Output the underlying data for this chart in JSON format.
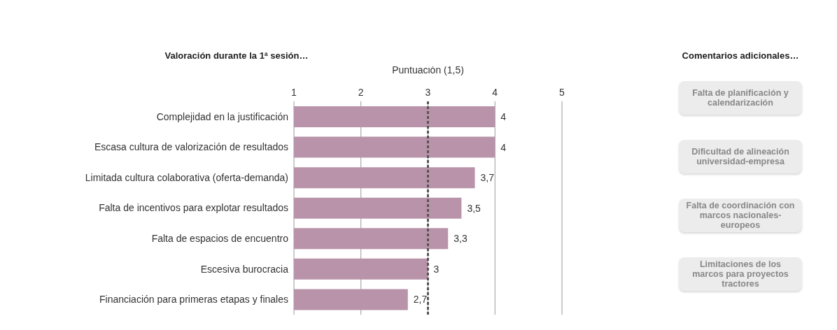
{
  "chart_data": [
    {
      "type": "bar",
      "orientation": "horizontal",
      "title": "Valoración durante la 1ª sesión…",
      "xlabel": "Puntuación (1,5)",
      "categories": [
        "Complejidad en la justificación",
        "Escasa cultura de valorización de resultados",
        "Limitada cultura colaborativa (oferta-demanda)",
        "Falta de incentivos para explotar resultados",
        "Falta de espacios de encuentro",
        "Escesiva burocracia",
        "Financiación para primeras etapas y finales"
      ],
      "values": [
        4,
        4,
        3.7,
        3.5,
        3.3,
        3,
        2.7
      ],
      "value_labels": [
        "4",
        "4",
        "3,7",
        "3,5",
        "3,3",
        "3",
        "2,7"
      ],
      "color": "#b893a9",
      "xlim": [
        1,
        5
      ],
      "xticks": [
        1,
        2,
        3,
        4,
        5
      ],
      "grid": "x",
      "ref_lines": [
        {
          "axis": "x",
          "value": 3,
          "color": "#555555",
          "line_style": "dashed"
        }
      ]
    },
    {
      "type": "other",
      "title": "Comentarios adicionales…",
      "annotations": [
        "Falta de planificación y calendarización",
        "Dificultad de alineación universidad-empresa",
        "Falta de coordinación con marcos nacionales-europeos",
        "Limitaciones de los marcos para proyectos tractores"
      ]
    }
  ]
}
